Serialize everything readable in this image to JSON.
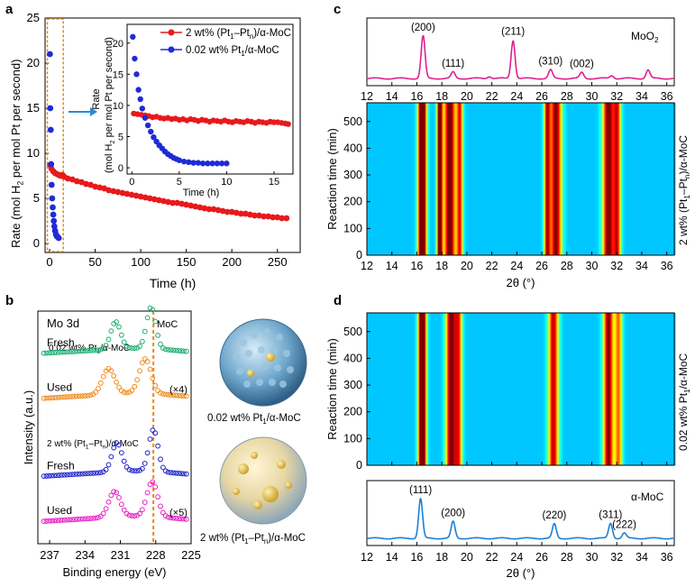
{
  "panel_labels": {
    "a": "a",
    "b": "b",
    "c": "c",
    "d": "d"
  },
  "chart_data": [
    {
      "id": "a",
      "type": "scatter",
      "xlabel": "Time (h)",
      "ylabel": "Rate (mol H2 per mol Pt per second)",
      "xlim": [
        -5,
        275
      ],
      "ylim": [
        -1,
        25
      ],
      "xticks": [
        0,
        50,
        100,
        150,
        200,
        250
      ],
      "yticks": [
        0,
        5,
        10,
        15,
        20,
        25
      ],
      "series": [
        {
          "name": "2 wt% (Pt1–Ptn)/α-MoC",
          "color": "#e8191c",
          "x": [
            0.5,
            2,
            4,
            6,
            8,
            10,
            12,
            14,
            16,
            20,
            25,
            30,
            35,
            40,
            45,
            50,
            55,
            60,
            65,
            70,
            75,
            80,
            85,
            90,
            95,
            100,
            105,
            110,
            115,
            120,
            125,
            130,
            135,
            140,
            145,
            150,
            155,
            160,
            165,
            170,
            175,
            180,
            185,
            190,
            195,
            200,
            205,
            210,
            215,
            220,
            225,
            230,
            235,
            240,
            245,
            250,
            255,
            260
          ],
          "y": [
            8.7,
            8.3,
            8.0,
            7.8,
            7.7,
            7.6,
            7.5,
            7.6,
            7.4,
            7.2,
            7.1,
            6.9,
            6.8,
            6.6,
            6.5,
            6.3,
            6.2,
            6.1,
            5.9,
            5.8,
            5.7,
            5.6,
            5.5,
            5.4,
            5.3,
            5.2,
            5.1,
            5.0,
            4.9,
            4.8,
            4.7,
            4.6,
            4.5,
            4.5,
            4.4,
            4.3,
            4.2,
            4.1,
            4.0,
            3.9,
            3.8,
            3.8,
            3.7,
            3.6,
            3.5,
            3.5,
            3.4,
            3.3,
            3.3,
            3.2,
            3.1,
            3.1,
            3.0,
            3.0,
            2.9,
            2.9,
            2.8,
            2.8
          ]
        },
        {
          "name": "0.02 wt% Pt1/α-MoC",
          "color": "#1e2bd6",
          "x": [
            0.3,
            0.7,
            1.2,
            1.7,
            2.2,
            2.8,
            3.4,
            4.0,
            4.6,
            5.2,
            6,
            7,
            8,
            9,
            10
          ],
          "y": [
            21.0,
            15.0,
            12.6,
            8.8,
            6.5,
            5.0,
            4.0,
            3.2,
            2.5,
            1.9,
            1.4,
            1.0,
            0.8,
            0.7,
            0.6
          ]
        }
      ],
      "legend": [
        "2 wt% (Pt1–Ptn)/α-MoC",
        "0.02 wt% Pt1/α-MoC"
      ],
      "legend_texts": [
        "2 wt% (Pt",
        "1",
        "–Pt",
        "n",
        ")/α-MoC",
        "0.02 wt% Pt",
        "1",
        "/α-MoC"
      ],
      "ylabel_texts": [
        "Rate (mol H",
        "2",
        " per mol Pt per second)"
      ],
      "inset": {
        "xlabel": "Time (h)",
        "ylabel_line1": "Rate",
        "ylabel_texts": [
          "(mol H",
          "2",
          " per mol Pt per second)"
        ],
        "xlim": [
          -0.5,
          17
        ],
        "ylim": [
          -1,
          23
        ],
        "xticks": [
          0,
          5,
          10,
          15
        ],
        "yticks": [
          0,
          5,
          10,
          15,
          20
        ],
        "red": {
          "x": [
            0.2,
            0.6,
            1.0,
            1.4,
            1.8,
            2.2,
            2.6,
            3.0,
            3.4,
            3.8,
            4.2,
            4.6,
            5.0,
            5.4,
            5.8,
            6.2,
            6.6,
            7.0,
            7.4,
            7.8,
            8.2,
            8.6,
            9.0,
            9.4,
            9.8,
            10.2,
            10.6,
            11.0,
            11.4,
            11.8,
            12.2,
            12.6,
            13.0,
            13.4,
            13.8,
            14.2,
            14.6,
            15.0,
            15.4,
            15.8,
            16.2,
            16.5
          ],
          "y": [
            8.7,
            8.6,
            8.5,
            8.4,
            8.3,
            8.1,
            8.2,
            8.0,
            7.9,
            8.0,
            7.8,
            7.9,
            7.7,
            7.8,
            7.6,
            7.8,
            7.7,
            7.5,
            7.7,
            7.6,
            7.4,
            7.6,
            7.5,
            7.4,
            7.6,
            7.4,
            7.3,
            7.5,
            7.4,
            7.3,
            7.5,
            7.4,
            7.2,
            7.4,
            7.3,
            7.2,
            7.4,
            7.3,
            7.3,
            7.2,
            7.1,
            7.0
          ]
        },
        "blue": {
          "x": [
            0.1,
            0.3,
            0.5,
            0.7,
            0.9,
            1.1,
            1.4,
            1.7,
            2.0,
            2.3,
            2.6,
            2.9,
            3.2,
            3.5,
            3.8,
            4.1,
            4.4,
            4.7,
            5.0,
            5.5,
            6.0,
            6.5,
            7.0,
            7.5,
            8.0,
            8.5,
            9.0,
            9.5,
            10.0
          ],
          "y": [
            21.0,
            17.5,
            15.0,
            12.5,
            11.0,
            9.5,
            8.0,
            6.8,
            5.8,
            4.9,
            4.2,
            3.6,
            3.1,
            2.6,
            2.2,
            1.9,
            1.6,
            1.4,
            1.2,
            1.0,
            0.9,
            0.8,
            0.8,
            0.7,
            0.7,
            0.7,
            0.7,
            0.7,
            0.7
          ]
        }
      }
    },
    {
      "id": "b",
      "type": "line",
      "title": "Mo 3d",
      "xlabel": "Binding energy (eV)",
      "ylabel": "Intensity (a.u.)",
      "xlim": [
        238,
        225
      ],
      "xticks": [
        237,
        234,
        231,
        228,
        225
      ],
      "reference_line": {
        "label": "MoC",
        "x": 228.2
      },
      "group_labels": [
        "0.02 wt% Pt1/α-MoC",
        "2 wt% (Pt1–Ptn)/α-MoC"
      ],
      "group_label_texts": [
        [
          "0.02 wt% Pt",
          "1",
          "/α-MoC"
        ],
        [
          "2 wt% (Pt",
          "1",
          "–Pt",
          "n",
          ")/α-MoC"
        ]
      ],
      "spectra": [
        {
          "name": "Fresh",
          "group": 0,
          "color": "#1aae6f",
          "scale": "",
          "offset": 3.0,
          "peaks": [
            {
              "center": 228.4,
              "height": 1.2,
              "width": 0.55
            },
            {
              "center": 231.4,
              "height": 0.8,
              "width": 0.6
            }
          ],
          "baseline_low": 0.06,
          "baseline_high": 0.3
        },
        {
          "name": "Used",
          "group": 0,
          "color": "#f08a1c",
          "scale": "(×4)",
          "offset": 2.2,
          "peaks": [
            {
              "center": 228.9,
              "height": 1.0,
              "width": 0.7
            },
            {
              "center": 232.0,
              "height": 0.75,
              "width": 0.75
            }
          ],
          "baseline_low": 0.05,
          "baseline_high": 0.3
        },
        {
          "name": "Fresh",
          "group": 1,
          "color": "#1a22c8",
          "scale": "",
          "offset": 0.8,
          "peaks": [
            {
              "center": 228.2,
              "height": 1.2,
              "width": 0.55
            },
            {
              "center": 231.3,
              "height": 0.85,
              "width": 0.6
            }
          ],
          "baseline_low": 0.06,
          "baseline_high": 0.32
        },
        {
          "name": "Used",
          "group": 1,
          "color": "#e81ec4",
          "scale": "(×5)",
          "offset": 0.0,
          "peaks": [
            {
              "center": 228.3,
              "height": 1.0,
              "width": 0.65
            },
            {
              "center": 231.5,
              "height": 0.75,
              "width": 0.7
            }
          ],
          "baseline_low": 0.05,
          "baseline_high": 0.3
        }
      ],
      "model_labels": [
        [
          "0.02 wt% Pt",
          "1",
          "/α-MoC"
        ],
        [
          "2 wt% (Pt",
          "1",
          "–Pt",
          "n",
          ")/α-MoC"
        ]
      ]
    },
    {
      "id": "c",
      "type": "heatmap",
      "xlabel": "2θ (°)",
      "ylabel": "Reaction time (min)",
      "xlim": [
        12,
        36.6
      ],
      "ylim": [
        0,
        570
      ],
      "xticks": [
        12,
        14,
        16,
        18,
        20,
        22,
        24,
        26,
        28,
        30,
        32,
        34,
        36
      ],
      "yticks": [
        0,
        100,
        200,
        300,
        400,
        500
      ],
      "side_label_texts": [
        "2 wt% (Pt",
        "1",
        "–Pt",
        "n",
        ")/α-MoC"
      ],
      "bands": [
        {
          "center": 16.4,
          "width": 0.32,
          "peak": 1.0
        },
        {
          "center": 17.8,
          "width": 0.22,
          "peak": 0.8
        },
        {
          "center": 18.6,
          "width": 0.45,
          "peak": 0.75
        },
        {
          "center": 19.4,
          "width": 0.25,
          "peak": 0.55
        },
        {
          "center": 26.4,
          "width": 0.25,
          "peak": 0.6
        },
        {
          "center": 27.1,
          "width": 0.45,
          "peak": 0.68
        },
        {
          "center": 31.3,
          "width": 0.45,
          "peak": 0.72
        },
        {
          "center": 32.0,
          "width": 0.3,
          "peak": 0.55
        }
      ],
      "reference_pattern": {
        "name": "MoO2",
        "name_texts": [
          "MoO",
          "2"
        ],
        "color": "#e0208e",
        "xlim": [
          12,
          36.6
        ],
        "xticks": [
          12,
          14,
          16,
          18,
          20,
          22,
          24,
          26,
          28,
          30,
          32,
          34,
          36
        ],
        "peaks": [
          {
            "label": "(200)",
            "x": 16.5,
            "h": 1.0
          },
          {
            "label": "(111)",
            "x": 18.9,
            "h": 0.15
          },
          {
            "label": "(211)",
            "x": 23.7,
            "h": 0.9
          },
          {
            "label": "(310)",
            "x": 26.7,
            "h": 0.2
          },
          {
            "label": "(002)",
            "x": 29.2,
            "h": 0.14
          },
          {
            "label": "",
            "x": 34.5,
            "h": 0.2
          },
          {
            "label": "",
            "x": 21.8,
            "h": 0.05
          },
          {
            "label": "",
            "x": 31.6,
            "h": 0.07
          }
        ]
      }
    },
    {
      "id": "d",
      "type": "heatmap",
      "xlabel": "2θ (°)",
      "ylabel": "Reaction time (min)",
      "xlim": [
        12,
        36.6
      ],
      "ylim": [
        0,
        570
      ],
      "xticks": [
        12,
        14,
        16,
        18,
        20,
        22,
        24,
        26,
        28,
        30,
        32,
        34,
        36
      ],
      "yticks": [
        0,
        100,
        200,
        300,
        400,
        500
      ],
      "side_label_texts": [
        "0.02 wt% Pt",
        "1",
        "/α-MoC"
      ],
      "bands": [
        {
          "center": 16.4,
          "width": 0.3,
          "peak": 1.0
        },
        {
          "center": 18.7,
          "width": 0.4,
          "peak": 0.72
        },
        {
          "center": 19.3,
          "width": 0.3,
          "peak": 0.5
        },
        {
          "center": 26.9,
          "width": 0.4,
          "peak": 0.62
        },
        {
          "center": 31.3,
          "width": 0.4,
          "peak": 0.68
        },
        {
          "center": 32.1,
          "width": 0.3,
          "peak": 0.45
        }
      ],
      "reference_pattern": {
        "name": "α-MoC",
        "color": "#1c7fd4",
        "xlim": [
          12,
          36.6
        ],
        "xticks": [
          12,
          14,
          16,
          18,
          20,
          22,
          24,
          26,
          28,
          30,
          32,
          34,
          36
        ],
        "peaks": [
          {
            "label": "(111)",
            "x": 16.3,
            "h": 1.0
          },
          {
            "label": "(200)",
            "x": 18.9,
            "h": 0.42
          },
          {
            "label": "(220)",
            "x": 27.0,
            "h": 0.36
          },
          {
            "label": "(311)",
            "x": 31.5,
            "h": 0.38
          },
          {
            "label": "(222)",
            "x": 32.6,
            "h": 0.13
          }
        ]
      }
    }
  ]
}
